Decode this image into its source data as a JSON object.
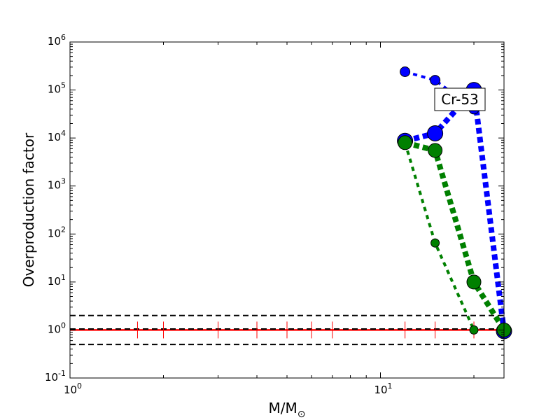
{
  "chart_data": {
    "type": "line",
    "title": "",
    "xlabel": "M/M",
    "xlabel_sub": "⊙",
    "ylabel": "Overproduction factor",
    "xscale": "log",
    "yscale": "log",
    "xlim": [
      1,
      25
    ],
    "ylim": [
      0.1,
      1000000
    ],
    "annotation": "Cr-53",
    "x_ticks": [
      {
        "value": 1,
        "base": "10",
        "exp": "0"
      },
      {
        "value": 10,
        "base": "10",
        "exp": "1"
      }
    ],
    "y_ticks": [
      {
        "value": 0.1,
        "base": "10",
        "exp": "-1"
      },
      {
        "value": 1,
        "base": "10",
        "exp": "0"
      },
      {
        "value": 10,
        "base": "10",
        "exp": "1"
      },
      {
        "value": 100,
        "base": "10",
        "exp": "2"
      },
      {
        "value": 1000,
        "base": "10",
        "exp": "3"
      },
      {
        "value": 10000,
        "base": "10",
        "exp": "4"
      },
      {
        "value": 100000,
        "base": "10",
        "exp": "5"
      },
      {
        "value": 1000000,
        "base": "10",
        "exp": "6"
      }
    ],
    "reference_lines": [
      {
        "y": 2.0,
        "color": "#000000",
        "dash": "dashed"
      },
      {
        "y": 1.0,
        "color": "#ff0000",
        "dash": "solid"
      },
      {
        "y": 1.05,
        "color": "#000000",
        "dash": "dashed"
      },
      {
        "y": 0.5,
        "color": "#000000",
        "dash": "dashed"
      }
    ],
    "red_tick_x": [
      1.65,
      2,
      3,
      4,
      5,
      6,
      7,
      12,
      15,
      20,
      25
    ],
    "series": [
      {
        "color": "#0000ff",
        "width": 4,
        "marker": 7,
        "x": [
          12,
          15,
          20
        ],
        "y": [
          240000,
          160000,
          40000
        ]
      },
      {
        "color": "#0000ff",
        "width": 8,
        "marker": 11,
        "x": [
          12,
          15,
          20,
          25
        ],
        "y": [
          8700,
          12500,
          100000,
          0.95
        ]
      },
      {
        "color": "#008000",
        "width": 4,
        "marker": 6,
        "x": [
          12,
          15,
          20
        ],
        "y": [
          8000,
          65,
          1.0
        ]
      },
      {
        "color": "#008000",
        "width": 8,
        "marker": 10,
        "x": [
          12,
          15,
          20,
          25
        ],
        "y": [
          8000,
          5500,
          10,
          1.0
        ]
      }
    ]
  }
}
